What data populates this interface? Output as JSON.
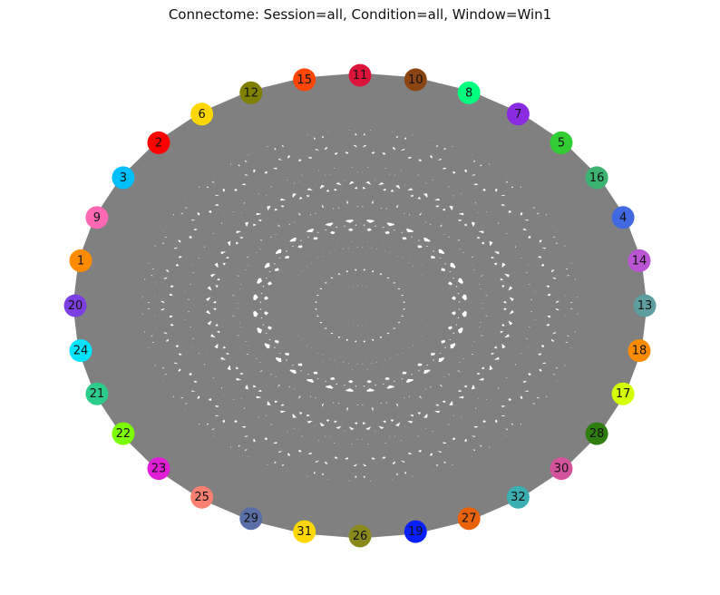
{
  "title": "Connectome: Session=all, Condition=all, Window=Win1",
  "graph": {
    "edge_color": "#808080",
    "nodes": [
      {
        "id": "11",
        "color": "#dc143c"
      },
      {
        "id": "10",
        "color": "#8b4513"
      },
      {
        "id": "8",
        "color": "#00ff7f"
      },
      {
        "id": "7",
        "color": "#8a2be2"
      },
      {
        "id": "5",
        "color": "#32cd32"
      },
      {
        "id": "16",
        "color": "#3cb371"
      },
      {
        "id": "4",
        "color": "#4169e1"
      },
      {
        "id": "14",
        "color": "#ba55d3"
      },
      {
        "id": "13",
        "color": "#5f9ea0"
      },
      {
        "id": "18",
        "color": "#ff8c00"
      },
      {
        "id": "17",
        "color": "#d4ff00"
      },
      {
        "id": "28",
        "color": "#2e7d0f"
      },
      {
        "id": "30",
        "color": "#d4549c"
      },
      {
        "id": "32",
        "color": "#3aaeb0"
      },
      {
        "id": "27",
        "color": "#e8620a"
      },
      {
        "id": "19",
        "color": "#0a1fff"
      },
      {
        "id": "26",
        "color": "#8a8a1c"
      },
      {
        "id": "31",
        "color": "#ffd700"
      },
      {
        "id": "29",
        "color": "#5a6ea8"
      },
      {
        "id": "25",
        "color": "#fa8072"
      },
      {
        "id": "23",
        "color": "#e01ed6"
      },
      {
        "id": "22",
        "color": "#7cfc00"
      },
      {
        "id": "21",
        "color": "#2ecc8a"
      },
      {
        "id": "24",
        "color": "#00e5ff"
      },
      {
        "id": "20",
        "color": "#7b3fe4"
      },
      {
        "id": "1",
        "color": "#ff8c00"
      },
      {
        "id": "9",
        "color": "#ff69b4"
      },
      {
        "id": "3",
        "color": "#00bfff"
      },
      {
        "id": "2",
        "color": "#ff0000"
      },
      {
        "id": "6",
        "color": "#ffd700"
      },
      {
        "id": "12",
        "color": "#808000"
      },
      {
        "id": "15",
        "color": "#ff4500"
      }
    ]
  }
}
